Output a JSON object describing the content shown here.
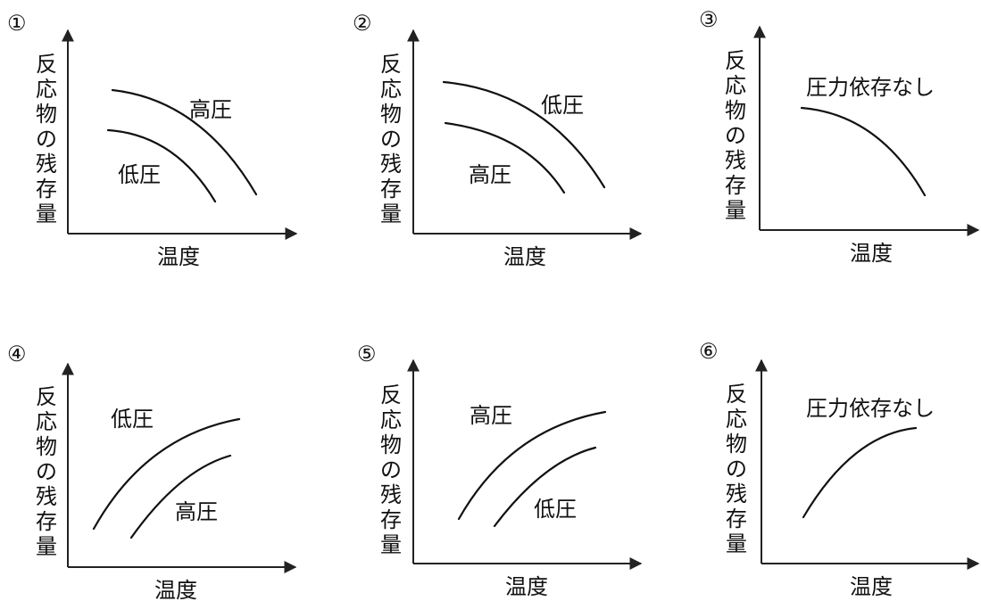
{
  "panels": [
    {
      "number": "①",
      "ylabel": [
        "反",
        "応",
        "物",
        "の",
        "残",
        "存",
        "量"
      ],
      "xlabel": "温度",
      "curves": [
        {
          "label": "高圧",
          "trend": "decreasing",
          "position": "upper"
        },
        {
          "label": "低圧",
          "trend": "decreasing",
          "position": "lower"
        }
      ]
    },
    {
      "number": "②",
      "ylabel": [
        "反",
        "応",
        "物",
        "の",
        "残",
        "存",
        "量"
      ],
      "xlabel": "温度",
      "curves": [
        {
          "label": "低圧",
          "trend": "decreasing",
          "position": "upper"
        },
        {
          "label": "高圧",
          "trend": "decreasing",
          "position": "lower"
        }
      ]
    },
    {
      "number": "③",
      "ylabel": [
        "反",
        "応",
        "物",
        "の",
        "残",
        "存",
        "量"
      ],
      "xlabel": "温度",
      "curves": [
        {
          "label": "圧力依存なし",
          "trend": "decreasing",
          "position": "single"
        }
      ]
    },
    {
      "number": "④",
      "ylabel": [
        "反",
        "応",
        "物",
        "の",
        "残",
        "存",
        "量"
      ],
      "xlabel": "温度",
      "curves": [
        {
          "label": "低圧",
          "trend": "increasing",
          "position": "upper"
        },
        {
          "label": "高圧",
          "trend": "increasing",
          "position": "lower"
        }
      ]
    },
    {
      "number": "⑤",
      "ylabel": [
        "反",
        "応",
        "物",
        "の",
        "残",
        "存",
        "量"
      ],
      "xlabel": "温度",
      "curves": [
        {
          "label": "高圧",
          "trend": "increasing",
          "position": "upper"
        },
        {
          "label": "低圧",
          "trend": "increasing",
          "position": "lower"
        }
      ]
    },
    {
      "number": "⑥",
      "ylabel": [
        "反",
        "応",
        "物",
        "の",
        "残",
        "存",
        "量"
      ],
      "xlabel": "温度",
      "curves": [
        {
          "label": "圧力依存なし",
          "trend": "increasing",
          "position": "single"
        }
      ]
    }
  ]
}
